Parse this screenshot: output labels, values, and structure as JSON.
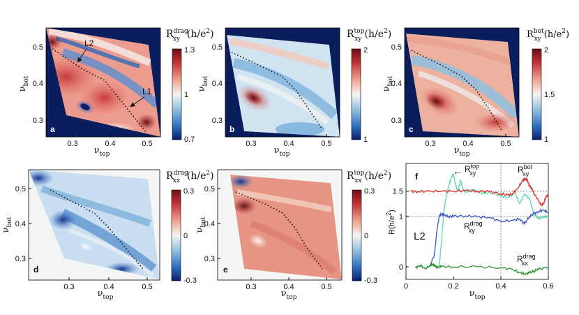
{
  "figure": {
    "panels": [
      {
        "id": "a",
        "letter": "a",
        "quantity": "R",
        "sub": "xy",
        "sup": "drag",
        "unit": "(h/e",
        "unit_tail": ")",
        "cbar_ticks": [
          "1.3",
          "1",
          "0.7"
        ],
        "xlabel": "ν",
        "xlabel_sub": "top",
        "ylabel": "ν",
        "ylabel_sub": "bot",
        "xticks": [
          "0.3",
          "0.4",
          "0.5"
        ],
        "yticks": [
          "0.5",
          "0.4",
          "0.3"
        ],
        "background": "#0a1e5e",
        "annotations": [
          "L2",
          "L1"
        ]
      },
      {
        "id": "b",
        "letter": "b",
        "quantity": "R",
        "sub": "xy",
        "sup": "top",
        "unit": "(h/e",
        "unit_tail": ")",
        "cbar_ticks": [
          "2",
          "1"
        ],
        "xlabel": "ν",
        "xlabel_sub": "top",
        "ylabel": "ν",
        "ylabel_sub": "bot",
        "xticks": [
          "0.3",
          "0.4",
          "0.5"
        ],
        "yticks": [
          "0.5",
          "0.4",
          "0.3"
        ],
        "background": "#0a1e5e"
      },
      {
        "id": "c",
        "letter": "c",
        "quantity": "R",
        "sub": "xy",
        "sup": "bot",
        "unit": "(h/e",
        "unit_tail": ")",
        "cbar_ticks": [
          "2",
          "1.5",
          "1"
        ],
        "xlabel": "ν",
        "xlabel_sub": "top",
        "ylabel": "ν",
        "ylabel_sub": "bot",
        "xticks": [
          "0.3",
          "0.4",
          "0.5"
        ],
        "yticks": [
          "0.5",
          "0.4",
          "0.3"
        ],
        "background": "#0a1e5e"
      },
      {
        "id": "d",
        "letter": "d",
        "quantity": "R",
        "sub": "xx",
        "sup": "drag",
        "unit": "(h/e",
        "unit_tail": ")",
        "cbar_ticks": [
          "0.3",
          "0",
          "-0.3"
        ],
        "xlabel": "ν",
        "xlabel_sub": "top",
        "ylabel": "ν",
        "ylabel_sub": "bot",
        "xticks": [
          "0.3",
          "0.4",
          "0.5"
        ],
        "yticks": [
          "0.5",
          "0.4",
          "0.3"
        ],
        "background": "#f4f6f6"
      },
      {
        "id": "e",
        "letter": "e",
        "quantity": "R",
        "sub": "xx",
        "sup": "top",
        "unit": "(h/e",
        "unit_tail": ")",
        "cbar_ticks": [
          "0.3",
          "0",
          "-0.3"
        ],
        "xlabel": "ν",
        "xlabel_sub": "top",
        "ylabel": "ν",
        "ylabel_sub": "bot",
        "xticks": [
          "0.3",
          "0.4",
          "0.5"
        ],
        "yticks": [
          "0.5",
          "0.4",
          "0.3"
        ],
        "background": "#f4f6f6"
      }
    ],
    "panel_f": {
      "letter": "f",
      "line_label": "L2",
      "ylabel": "R(h/e",
      "ylabel_tail": ")",
      "xlabel": "ν",
      "xlabel_sub": "top",
      "xticks": [
        "0",
        "0.2",
        "0.4",
        "0.6"
      ],
      "yticks": [
        "1.5",
        "1",
        "0"
      ],
      "labels": {
        "top": {
          "q": "R",
          "sub": "xy",
          "sup": "top"
        },
        "bot": {
          "q": "R",
          "sub": "xy",
          "sup": "bot"
        },
        "drag_xy": {
          "q": "R",
          "sub": "xy",
          "sup": "drag"
        },
        "drag_xx": {
          "q": "R",
          "sub": "xx",
          "sup": "drag"
        }
      },
      "arrow": "←"
    }
  },
  "chart_data": {
    "type": "line",
    "title": "",
    "xlabel": "ν_top",
    "ylabel": "R(h/e^2)",
    "xlim": [
      0,
      0.6
    ],
    "ylim": [
      -0.25,
      2.05
    ],
    "reference_lines": {
      "y": [
        1.5,
        1
      ],
      "x": [
        0.4
      ]
    },
    "series": [
      {
        "name": "R_xy^top",
        "color": "#5ed6b0",
        "x": [
          0.14,
          0.15,
          0.16,
          0.17,
          0.18,
          0.19,
          0.2,
          0.21,
          0.22,
          0.23,
          0.24,
          0.25,
          0.27,
          0.3,
          0.33,
          0.36,
          0.4,
          0.43,
          0.46,
          0.48,
          0.5,
          0.52,
          0.54,
          0.56,
          0.58,
          0.6
        ],
        "y": [
          0,
          0.55,
          1.1,
          1.4,
          1.6,
          1.75,
          1.85,
          1.6,
          1.5,
          1.72,
          1.55,
          1.48,
          1.52,
          1.5,
          1.45,
          1.48,
          1.4,
          1.38,
          1.45,
          1.25,
          1.45,
          1.35,
          1.05,
          0.95,
          1.0,
          0.98
        ]
      },
      {
        "name": "R_xy^bot",
        "color": "#e0332a",
        "x": [
          0.02,
          0.05,
          0.1,
          0.15,
          0.2,
          0.25,
          0.3,
          0.35,
          0.4,
          0.43,
          0.45,
          0.47,
          0.49,
          0.5,
          0.51,
          0.52,
          0.53,
          0.54,
          0.56,
          0.57,
          0.58,
          0.59,
          0.6
        ],
        "y": [
          1.5,
          1.49,
          1.5,
          1.5,
          1.5,
          1.51,
          1.5,
          1.49,
          1.45,
          1.42,
          1.45,
          1.55,
          1.7,
          1.75,
          1.72,
          1.62,
          1.55,
          1.45,
          1.3,
          1.22,
          1.25,
          1.38,
          1.42
        ]
      },
      {
        "name": "R_xy^drag",
        "color": "#3a54c8",
        "x": [
          0.1,
          0.12,
          0.13,
          0.14,
          0.15,
          0.16,
          0.18,
          0.2,
          0.25,
          0.3,
          0.35,
          0.4,
          0.45,
          0.48,
          0.5,
          0.52,
          0.54,
          0.56,
          0.58,
          0.6
        ],
        "y": [
          0,
          0.25,
          0.7,
          1.0,
          1.05,
          1.02,
          1.0,
          1.0,
          1.01,
          0.99,
          0.98,
          0.9,
          0.92,
          0.95,
          0.85,
          1.0,
          1.05,
          1.1,
          1.12,
          1.08
        ]
      },
      {
        "name": "R_xx^drag",
        "color": "#2d9a36",
        "x": [
          0.04,
          0.06,
          0.08,
          0.1,
          0.11,
          0.12,
          0.13,
          0.15,
          0.2,
          0.3,
          0.4,
          0.45,
          0.48,
          0.5,
          0.52,
          0.54,
          0.56,
          0.6
        ],
        "y": [
          -0.02,
          0.03,
          -0.04,
          0.02,
          0.05,
          0.02,
          0,
          0,
          0,
          0,
          -0.02,
          -0.05,
          -0.12,
          -0.14,
          -0.12,
          -0.08,
          -0.05,
          0
        ]
      }
    ]
  }
}
